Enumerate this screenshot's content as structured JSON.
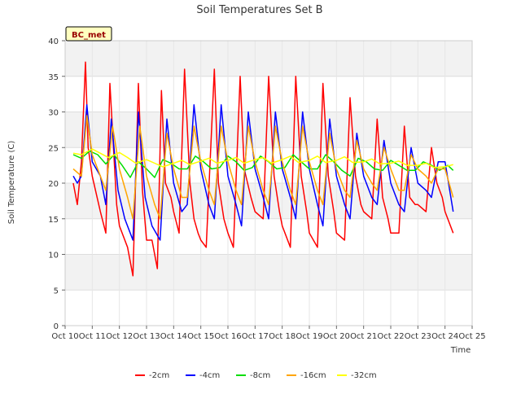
{
  "chart_data": {
    "type": "line",
    "title": "Soil Temperatures Set B",
    "xlabel": "Time",
    "ylabel": "Soil Temperature (C)",
    "site_label": "BC_met",
    "xlim": [
      10,
      25
    ],
    "ylim": [
      0,
      40
    ],
    "x_ticks": [
      10,
      11,
      12,
      13,
      14,
      15,
      16,
      17,
      18,
      19,
      20,
      21,
      22,
      23,
      24,
      25
    ],
    "x_tick_labels": [
      "Oct 10",
      "Oct 11",
      "Oct 12",
      "Oct 13",
      "Oct 14",
      "Oct 15",
      "Oct 16",
      "Oct 17",
      "Oct 18",
      "Oct 19",
      "Oct 20",
      "Oct 21",
      "Oct 22",
      "Oct 23",
      "Oct 24",
      "Oct 25"
    ],
    "y_ticks": [
      0,
      5,
      10,
      15,
      20,
      25,
      30,
      35,
      40
    ],
    "y_tick_labels": [
      "0",
      "5",
      "10",
      "15",
      "20",
      "25",
      "30",
      "35",
      "40"
    ],
    "grid": true,
    "legend_position": "bottom",
    "series": [
      {
        "name": "-2cm",
        "color": "#ff0000",
        "x": [
          10.3,
          10.45,
          10.6,
          10.75,
          10.85,
          11.0,
          11.3,
          11.5,
          11.65,
          11.9,
          12.0,
          12.3,
          12.5,
          12.7,
          12.85,
          13.0,
          13.2,
          13.4,
          13.55,
          13.7,
          13.9,
          14.0,
          14.2,
          14.4,
          14.6,
          14.75,
          14.9,
          15.0,
          15.2,
          15.5,
          15.65,
          15.85,
          16.0,
          16.2,
          16.45,
          16.6,
          16.85,
          17.0,
          17.3,
          17.5,
          17.7,
          17.9,
          18.0,
          18.3,
          18.5,
          18.7,
          18.9,
          19.0,
          19.3,
          19.5,
          19.7,
          19.9,
          20.0,
          20.3,
          20.5,
          20.7,
          20.9,
          21.0,
          21.3,
          21.5,
          21.7,
          21.9,
          22.0,
          22.3,
          22.5,
          22.7,
          22.9,
          23.0,
          23.3,
          23.5,
          23.7,
          23.9,
          24.0,
          24.3
        ],
        "y": [
          20,
          17,
          23,
          37,
          25,
          21,
          16,
          13,
          34,
          17,
          14,
          11,
          7,
          34,
          19,
          12,
          12,
          8,
          33,
          20,
          18,
          16,
          13,
          36,
          20,
          15,
          13,
          12,
          11,
          36,
          20,
          15,
          13,
          11,
          35,
          22,
          18,
          16,
          15,
          35,
          21,
          16,
          14,
          11,
          35,
          21,
          16,
          13,
          11,
          34,
          21,
          16,
          13,
          12,
          32,
          21,
          17,
          16,
          15,
          29,
          18,
          15,
          13,
          13,
          28,
          18,
          17,
          17,
          16,
          25,
          20,
          18,
          16,
          13
        ]
      },
      {
        "name": "-4cm",
        "color": "#0000ff",
        "x": [
          10.3,
          10.45,
          10.6,
          10.8,
          11.0,
          11.3,
          11.5,
          11.7,
          11.95,
          12.2,
          12.5,
          12.7,
          12.95,
          13.2,
          13.5,
          13.75,
          14.0,
          14.3,
          14.5,
          14.75,
          15.0,
          15.3,
          15.5,
          15.75,
          16.0,
          16.3,
          16.5,
          16.75,
          17.0,
          17.3,
          17.5,
          17.75,
          18.0,
          18.3,
          18.5,
          18.75,
          19.0,
          19.3,
          19.5,
          19.75,
          20.0,
          20.3,
          20.5,
          20.75,
          21.0,
          21.3,
          21.5,
          21.75,
          22.0,
          22.3,
          22.5,
          22.75,
          23.0,
          23.3,
          23.5,
          23.75,
          24.0,
          24.3
        ],
        "y": [
          21,
          20,
          21,
          31,
          23,
          21,
          17,
          29,
          19,
          15,
          12,
          30,
          18,
          14,
          12,
          29,
          20,
          16,
          17,
          31,
          22,
          17,
          15,
          31,
          21,
          17,
          14,
          30,
          22,
          18,
          15,
          30,
          22,
          18,
          15,
          30,
          22,
          17,
          14,
          29,
          21,
          17,
          15,
          27,
          21,
          18,
          17,
          26,
          20,
          17,
          16,
          25,
          20,
          19,
          18,
          23,
          23,
          16
        ]
      },
      {
        "name": "-8cm",
        "color": "#00dd00",
        "x": [
          10.3,
          10.6,
          10.9,
          11.2,
          11.5,
          11.8,
          12.1,
          12.4,
          12.7,
          13.0,
          13.3,
          13.6,
          13.9,
          14.2,
          14.5,
          14.8,
          15.1,
          15.4,
          15.7,
          16.0,
          16.3,
          16.6,
          16.9,
          17.2,
          17.5,
          17.8,
          18.1,
          18.4,
          18.7,
          19.0,
          19.3,
          19.6,
          19.9,
          20.2,
          20.5,
          20.8,
          21.1,
          21.4,
          21.7,
          22.0,
          22.3,
          22.6,
          22.9,
          23.2,
          23.5,
          23.8,
          24.1,
          24.3
        ],
        "y": [
          24,
          23.5,
          24.5,
          24,
          22.7,
          24,
          22.5,
          20.8,
          23,
          22,
          20.8,
          23.3,
          22.8,
          22,
          22,
          23.8,
          23,
          22,
          22.2,
          23.8,
          23,
          21.8,
          22.2,
          23.8,
          23,
          22,
          22.2,
          24,
          23,
          22,
          22,
          24,
          23,
          21.8,
          21,
          23.5,
          23,
          22,
          21.8,
          23.2,
          22.5,
          21.8,
          21.8,
          23,
          22.5,
          21.8,
          22.5,
          21.8
        ]
      },
      {
        "name": "-16cm",
        "color": "#ffa500",
        "x": [
          10.3,
          10.6,
          10.8,
          11.0,
          11.3,
          11.5,
          11.75,
          12.0,
          12.3,
          12.5,
          12.75,
          13.0,
          13.3,
          13.5,
          13.75,
          14.0,
          14.3,
          14.5,
          14.75,
          15.0,
          15.3,
          15.5,
          15.75,
          16.0,
          16.3,
          16.5,
          16.75,
          17.0,
          17.3,
          17.5,
          17.75,
          18.0,
          18.3,
          18.5,
          18.75,
          19.0,
          19.3,
          19.5,
          19.75,
          20.0,
          20.3,
          20.5,
          20.75,
          21.0,
          21.3,
          21.5,
          21.75,
          22.0,
          22.3,
          22.5,
          22.75,
          23.0,
          23.3,
          23.5,
          23.75,
          24.0,
          24.3
        ],
        "y": [
          22,
          21,
          29.5,
          24,
          21,
          19,
          28,
          22,
          18,
          15,
          28,
          21,
          17,
          15,
          27,
          22,
          18,
          18,
          28,
          23,
          19,
          17,
          28,
          23,
          19,
          17,
          28,
          23,
          19,
          17,
          28,
          23,
          19,
          17,
          28,
          23,
          19,
          17,
          27,
          22,
          19,
          18,
          26,
          22,
          20,
          19,
          25,
          22,
          19,
          19,
          24,
          22,
          21,
          20,
          22,
          22,
          18
        ]
      },
      {
        "name": "-32cm",
        "color": "#ffff00",
        "x": [
          10.3,
          10.6,
          11.0,
          11.3,
          11.6,
          12.0,
          12.3,
          12.6,
          13.0,
          13.3,
          13.6,
          14.0,
          14.3,
          14.6,
          15.0,
          15.3,
          15.6,
          16.0,
          16.3,
          16.6,
          17.0,
          17.3,
          17.6,
          18.0,
          18.3,
          18.6,
          19.0,
          19.3,
          19.6,
          20.0,
          20.3,
          20.6,
          21.0,
          21.3,
          21.6,
          22.0,
          22.3,
          22.6,
          23.0,
          23.3,
          23.6,
          24.0,
          24.3
        ],
        "y": [
          24.2,
          24,
          24.8,
          24.2,
          23.6,
          24.3,
          23.6,
          22.8,
          23.3,
          22.8,
          22.3,
          22.8,
          23.2,
          22.6,
          23.1,
          23.5,
          22.8,
          23.2,
          23.6,
          22.8,
          23.3,
          23.6,
          22.8,
          23.3,
          23.8,
          22.9,
          23.2,
          23.8,
          22.9,
          23.2,
          23.7,
          22.9,
          23.0,
          23.4,
          22.7,
          22.8,
          23.1,
          22.5,
          22.5,
          22.8,
          22.2,
          22.3,
          22.6
        ]
      }
    ]
  }
}
